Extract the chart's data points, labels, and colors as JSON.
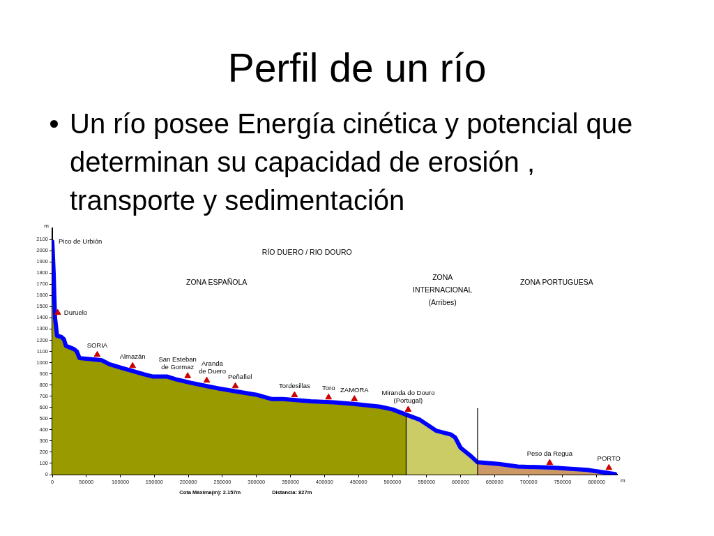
{
  "chart_data": {
    "type": "area",
    "title": "Perfil de un río",
    "subtitle": "Un río posee Energía cinética y potencial que determinan su capacidad de erosión , transporte y sedimentación",
    "xlabel": "m",
    "ylabel": "m",
    "xlim": [
      0,
      830000
    ],
    "ylim": [
      0,
      2200
    ],
    "xticks": [
      0,
      50000,
      100000,
      150000,
      200000,
      250000,
      300000,
      350000,
      400000,
      450000,
      500000,
      550000,
      600000,
      650000,
      700000,
      750000,
      800000
    ],
    "yticks": [
      0,
      100,
      200,
      300,
      400,
      500,
      600,
      700,
      800,
      900,
      1000,
      1100,
      1200,
      1300,
      1400,
      1500,
      1600,
      1700,
      1800,
      1900,
      2000,
      2100
    ],
    "series": [
      {
        "color": "#999900",
        "x": [
          0,
          2000,
          3000,
          4000,
          7000,
          13000,
          17000,
          20000,
          26000,
          32000,
          36000,
          40000,
          50000,
          66000,
          73000,
          84000,
          101000,
          118000,
          135000,
          148000,
          169000,
          182000,
          203000,
          227000,
          244000,
          268000,
          302000,
          322000,
          339000,
          380000,
          414000,
          448000,
          482000,
          500000,
          520000
        ],
        "values": [
          2080,
          1800,
          1590,
          1400,
          1240,
          1230,
          1210,
          1150,
          1135,
          1120,
          1100,
          1040,
          1035,
          1025,
          1020,
          985,
          955,
          925,
          895,
          875,
          875,
          850,
          820,
          790,
          770,
          745,
          710,
          675,
          675,
          655,
          645,
          628,
          606,
          582,
          535
        ]
      },
      {
        "color": "#cccc66",
        "x": [
          520000,
          540000,
          564000,
          586000,
          592000,
          600000,
          615000,
          625000
        ],
        "values": [
          535,
          490,
          392,
          357,
          332,
          240,
          166,
          110
        ]
      },
      {
        "color": "#cc9966",
        "x": [
          625000,
          656000,
          684000,
          735000,
          786000,
          827000
        ],
        "values": [
          110,
          95,
          72,
          62,
          42,
          5
        ]
      },
      {
        "type": "line",
        "color": "#0000ff",
        "x": [
          0,
          2000,
          3000,
          4000,
          7000,
          13000,
          17000,
          20000,
          26000,
          32000,
          36000,
          40000,
          50000,
          66000,
          73000,
          84000,
          101000,
          118000,
          135000,
          148000,
          169000,
          182000,
          203000,
          227000,
          244000,
          268000,
          302000,
          322000,
          339000,
          380000,
          414000,
          448000,
          482000,
          500000,
          520000,
          540000,
          564000,
          586000,
          592000,
          600000,
          615000,
          625000,
          656000,
          684000,
          735000,
          786000,
          827000
        ],
        "values": [
          2080,
          1800,
          1590,
          1400,
          1240,
          1230,
          1210,
          1150,
          1135,
          1120,
          1100,
          1040,
          1035,
          1025,
          1020,
          985,
          955,
          925,
          895,
          875,
          875,
          850,
          820,
          790,
          770,
          745,
          710,
          675,
          675,
          655,
          645,
          628,
          606,
          582,
          535,
          490,
          392,
          357,
          332,
          240,
          166,
          110,
          95,
          72,
          62,
          42,
          5
        ]
      },
      {
        "type": "line",
        "color": "#000000",
        "x": [
          520000,
          520000
        ],
        "values": [
          0,
          535
        ]
      },
      {
        "type": "line",
        "color": "#000000",
        "x": [
          625000,
          625000
        ],
        "values": [
          0,
          590
        ]
      },
      {
        "type": "scatter",
        "color": "#cc0000",
        "marker": "triangle",
        "x": [
          8000,
          66000,
          118000,
          199000,
          227000,
          269000,
          356000,
          406000,
          444000,
          523000,
          731000,
          818000
        ],
        "values": [
          1445,
          1070,
          970,
          880,
          840,
          790,
          710,
          690,
          675,
          580,
          105,
          60
        ]
      }
    ],
    "annotations": [
      "RÍO DUERO / RIO DOURO",
      "ZONA ESPAÑOLA",
      "ZONA INTERNACIONAL (Arribes)",
      "ZONA PORTUGUESA",
      "Cota Máxima(m): 2.157m",
      "Distancia: 827m",
      {
        "text": "Pico de Urbión",
        "x": 0,
        "y": 2080
      },
      {
        "text": "Duruelo",
        "x": 8000,
        "y": 1445
      },
      {
        "text": "SORIA",
        "x": 66000,
        "y": 1070
      },
      {
        "text": "Almazán",
        "x": 118000,
        "y": 970
      },
      {
        "text": "San Esteban\nde Gormaz",
        "x": 199000,
        "y": 880
      },
      {
        "text": "Aranda\nde Duero",
        "x": 227000,
        "y": 840
      },
      {
        "text": "Peñafiel",
        "x": 269000,
        "y": 790
      },
      {
        "text": "Tordesillas",
        "x": 356000,
        "y": 710
      },
      {
        "text": "Toro",
        "x": 406000,
        "y": 690
      },
      {
        "text": "ZAMORA",
        "x": 444000,
        "y": 675
      },
      {
        "text": "Miranda do Douro\n(Portugal)",
        "x": 523000,
        "y": 580
      },
      {
        "text": "Peso da Regua",
        "x": 731000,
        "y": 105
      },
      {
        "text": "PORTO",
        "x": 818000,
        "y": 60
      }
    ]
  }
}
